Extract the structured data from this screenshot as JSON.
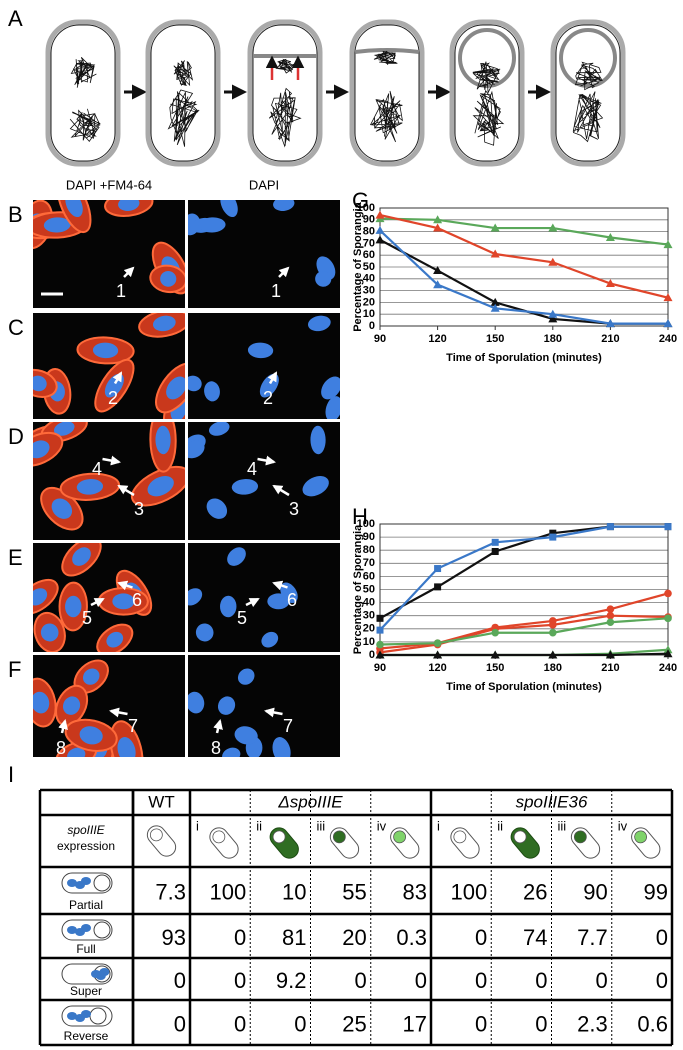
{
  "schematic": {
    "label": "A"
  },
  "micrographs": {
    "columns": [
      "DAPI +FM4-64",
      "DAPI"
    ],
    "rows": [
      {
        "panel": "B",
        "labels": [
          "1"
        ]
      },
      {
        "panel": "C",
        "labels": [
          "2"
        ]
      },
      {
        "panel": "D",
        "labels": [
          "4",
          "3"
        ]
      },
      {
        "panel": "E",
        "labels": [
          "5",
          "6"
        ]
      },
      {
        "panel": "F",
        "labels": [
          "8",
          "7"
        ]
      }
    ]
  },
  "chart_data": [
    {
      "type": "line",
      "label": "G",
      "xlabel": "Time of Sporulation (minutes)",
      "ylabel": "Percentage of Sporangia",
      "x": [
        90,
        120,
        150,
        180,
        210,
        240
      ],
      "xlim": [
        90,
        240
      ],
      "xticks": [
        90,
        120,
        150,
        180,
        210,
        240
      ],
      "ylim": [
        0,
        100
      ],
      "yticks": [
        0,
        10,
        20,
        30,
        40,
        50,
        60,
        70,
        80,
        90,
        100
      ],
      "grid": true,
      "series": [
        {
          "color": "#5aa85a",
          "marker": "triangle",
          "values": [
            91,
            90,
            83,
            83,
            75,
            69
          ]
        },
        {
          "color": "#e0452a",
          "marker": "triangle",
          "values": [
            94,
            83,
            61,
            54,
            36,
            24
          ]
        },
        {
          "color": "#111111",
          "marker": "triangle",
          "values": [
            73,
            47,
            20,
            6,
            2,
            2
          ]
        },
        {
          "color": "#3a78c8",
          "marker": "triangle",
          "values": [
            81,
            35,
            15,
            10,
            2,
            2
          ]
        }
      ]
    },
    {
      "type": "line",
      "label": "H",
      "xlabel": "Time of Sporulation (minutes)",
      "ylabel": "Percentage of Sporangia",
      "x": [
        90,
        120,
        150,
        180,
        210,
        240
      ],
      "xlim": [
        90,
        240
      ],
      "xticks": [
        90,
        120,
        150,
        180,
        210,
        240
      ],
      "ylim": [
        0,
        100
      ],
      "yticks": [
        0,
        10,
        20,
        30,
        40,
        50,
        60,
        70,
        80,
        90,
        100
      ],
      "grid": true,
      "series": [
        {
          "color": "#111111",
          "marker": "square",
          "values": [
            28,
            52,
            79,
            93,
            98,
            98
          ]
        },
        {
          "color": "#3a78c8",
          "marker": "square",
          "values": [
            19,
            66,
            86,
            90,
            98,
            98
          ]
        },
        {
          "color": "#e0452a",
          "marker": "circle",
          "values": [
            5,
            9,
            21,
            26,
            35,
            47
          ]
        },
        {
          "color": "#e0452a",
          "marker": "circle",
          "values": [
            2,
            8,
            20,
            23,
            30,
            29
          ]
        },
        {
          "color": "#5aa85a",
          "marker": "circle",
          "values": [
            8,
            9,
            17,
            17,
            25,
            28
          ]
        },
        {
          "color": "#5aa85a",
          "marker": "triangle",
          "values": [
            0,
            0,
            0,
            0,
            1,
            4
          ]
        },
        {
          "color": "#111111",
          "marker": "triangle",
          "values": [
            0,
            0,
            0,
            0,
            0,
            1
          ]
        }
      ]
    }
  ],
  "table": {
    "label": "I",
    "groups": [
      "WT",
      "ΔspoIIIE",
      "spoIIIE36"
    ],
    "expression_label": [
      "spoIIIE",
      "expression"
    ],
    "subcolumns": [
      "i",
      "ii",
      "iii",
      "iv",
      "i",
      "ii",
      "iii",
      "iv"
    ],
    "rows": [
      {
        "label": "Partial",
        "values": [
          7.3,
          100,
          10,
          55,
          83,
          100,
          26,
          90,
          99
        ]
      },
      {
        "label": "Full",
        "values": [
          93,
          0,
          81,
          20,
          0.3,
          0,
          74,
          7.7,
          0
        ]
      },
      {
        "label": "Super",
        "values": [
          0,
          0,
          9.2,
          0,
          0,
          0,
          0,
          0,
          0
        ]
      },
      {
        "label": "Reverse",
        "values": [
          0,
          0,
          0,
          25,
          17,
          0,
          0,
          2.3,
          0.6
        ]
      }
    ]
  }
}
